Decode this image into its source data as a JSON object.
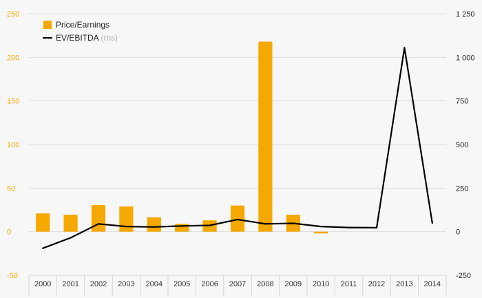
{
  "chart_data": {
    "type": "bar",
    "categories": [
      "2000",
      "2001",
      "2002",
      "2003",
      "2004",
      "2005",
      "2006",
      "2007",
      "2008",
      "2009",
      "2010",
      "2011",
      "2012",
      "2013",
      "2014"
    ],
    "series": [
      {
        "name": "Price/Earnings",
        "type": "bar",
        "axis": "left",
        "color": "#f5a800",
        "values": [
          21,
          19.5,
          30.5,
          29,
          16.5,
          9,
          13,
          30,
          218,
          19.5,
          -2,
          null,
          null,
          null,
          null
        ]
      },
      {
        "name": "EV/EBITDA",
        "type": "line",
        "axis": "right",
        "color": "#000000",
        "values": [
          -95,
          -35,
          45,
          30,
          27,
          33,
          36,
          70,
          45,
          48,
          30,
          24,
          23,
          1055,
          50
        ]
      }
    ],
    "legend": {
      "items": [
        {
          "label": "Price/Earnings",
          "suffix": ""
        },
        {
          "label": "EV/EBITDA",
          "suffix": "(rhs)"
        }
      ],
      "placement": "top-left"
    },
    "y_left": {
      "ticks": [
        250,
        200,
        150,
        100,
        50,
        0,
        -50
      ],
      "tick_labels": [
        "250",
        "200",
        "150",
        "100",
        "50",
        "0",
        "-50"
      ],
      "range": [
        -50,
        250
      ],
      "color": "#f5a800"
    },
    "y_right": {
      "ticks": [
        1250,
        1000,
        750,
        500,
        250,
        0,
        -250
      ],
      "tick_labels": [
        "1 250",
        "1 000",
        "750",
        "500",
        "250",
        "0",
        "-250"
      ],
      "range": [
        -250,
        1250
      ],
      "color": "#222222"
    },
    "grid": true
  }
}
